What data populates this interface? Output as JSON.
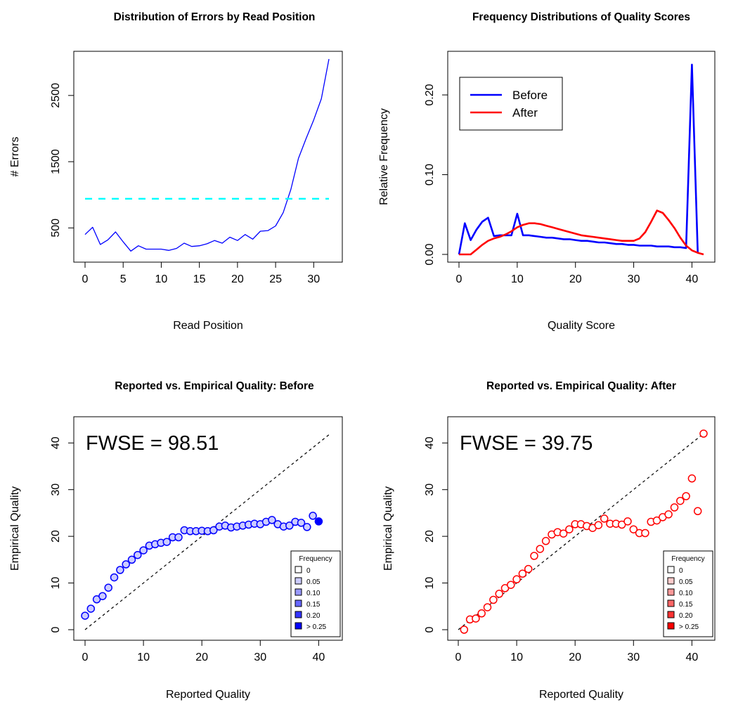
{
  "chart_data": [
    {
      "id": "errors",
      "type": "line",
      "title": "Distribution of Errors by Read Position",
      "xlabel": "Read Position",
      "ylabel": "# Errors",
      "xlim": [
        0,
        32
      ],
      "ylim": [
        100,
        3050
      ],
      "xticks": [
        0,
        5,
        10,
        15,
        20,
        25,
        30
      ],
      "yticks": [
        500,
        1500,
        2500
      ],
      "series": [
        {
          "color": "#0000ff",
          "style": "solid",
          "x": [
            0,
            1,
            2,
            3,
            4,
            5,
            6,
            7,
            8,
            9,
            10,
            11,
            12,
            13,
            14,
            15,
            16,
            17,
            18,
            19,
            20,
            21,
            22,
            23,
            24,
            25,
            26,
            27,
            28,
            29,
            30,
            31,
            32
          ],
          "y": [
            400,
            510,
            250,
            320,
            440,
            290,
            150,
            230,
            180,
            180,
            180,
            160,
            190,
            270,
            220,
            230,
            260,
            310,
            270,
            360,
            310,
            400,
            330,
            450,
            460,
            530,
            730,
            1080,
            1550,
            1850,
            2130,
            2450,
            3050
          ]
        },
        {
          "color": "#00ffff",
          "style": "dashed",
          "x": [
            0,
            32
          ],
          "y": [
            940,
            940
          ]
        }
      ]
    },
    {
      "id": "freq",
      "type": "line",
      "title": "Frequency Distributions of Quality Scores",
      "xlabel": "Quality Score",
      "ylabel": "Relative Frequency",
      "xlim": [
        0,
        42
      ],
      "ylim": [
        0,
        0.245
      ],
      "xticks": [
        0,
        10,
        20,
        30,
        40
      ],
      "yticks": [
        "0.00",
        "0.10",
        "0.20"
      ],
      "legend": {
        "position": "top-left",
        "entries": [
          "Before",
          "After"
        ]
      },
      "series": [
        {
          "name": "Before",
          "color": "#0000ff",
          "x": [
            0,
            1,
            2,
            3,
            4,
            5,
            6,
            7,
            8,
            9,
            10,
            11,
            12,
            13,
            14,
            15,
            16,
            17,
            18,
            19,
            20,
            21,
            22,
            23,
            24,
            25,
            26,
            27,
            28,
            29,
            30,
            31,
            32,
            33,
            34,
            35,
            36,
            37,
            38,
            39,
            40,
            41
          ],
          "y": [
            0.0,
            0.039,
            0.018,
            0.031,
            0.041,
            0.046,
            0.023,
            0.024,
            0.024,
            0.024,
            0.051,
            0.024,
            0.024,
            0.023,
            0.022,
            0.021,
            0.021,
            0.02,
            0.019,
            0.019,
            0.018,
            0.017,
            0.017,
            0.016,
            0.015,
            0.015,
            0.014,
            0.013,
            0.013,
            0.012,
            0.012,
            0.011,
            0.011,
            0.011,
            0.01,
            0.01,
            0.01,
            0.009,
            0.009,
            0.008,
            0.238,
            0.002
          ]
        },
        {
          "name": "After",
          "color": "#ff0000",
          "x": [
            0,
            1,
            2,
            3,
            4,
            5,
            6,
            7,
            8,
            9,
            10,
            11,
            12,
            13,
            14,
            15,
            16,
            17,
            18,
            19,
            20,
            21,
            22,
            23,
            24,
            25,
            26,
            27,
            28,
            29,
            30,
            31,
            32,
            33,
            34,
            35,
            36,
            37,
            38,
            39,
            40,
            41,
            42
          ],
          "y": [
            0.0,
            0.0,
            0.0,
            0.006,
            0.012,
            0.017,
            0.02,
            0.022,
            0.025,
            0.029,
            0.034,
            0.037,
            0.039,
            0.039,
            0.038,
            0.036,
            0.034,
            0.032,
            0.03,
            0.028,
            0.026,
            0.024,
            0.023,
            0.022,
            0.021,
            0.02,
            0.019,
            0.018,
            0.017,
            0.017,
            0.017,
            0.02,
            0.028,
            0.041,
            0.055,
            0.052,
            0.043,
            0.033,
            0.021,
            0.011,
            0.005,
            0.002,
            0.0
          ]
        }
      ]
    },
    {
      "id": "before",
      "type": "scatter",
      "title": "Reported vs. Empirical Quality: Before",
      "xlabel": "Reported Quality",
      "ylabel": "Empirical Quality",
      "xlim": [
        0,
        42
      ],
      "ylim": [
        0,
        42
      ],
      "xticks": [
        0,
        10,
        20,
        30,
        40
      ],
      "yticks": [
        0,
        10,
        20,
        30,
        40
      ],
      "annotation": "FWSE = 98.51",
      "legend": {
        "title": "Frequency",
        "position": "bottom-right",
        "entries": [
          "0",
          "0.05",
          "0.10",
          "0.15",
          "0.20",
          "> 0.25"
        ],
        "fills": [
          "#ffffff",
          "#ccccff",
          "#9999ff",
          "#6666ff",
          "#3333ff",
          "#0000ff"
        ]
      },
      "series": [
        {
          "color": "#0000ff",
          "x": [
            0,
            1,
            2,
            3,
            4,
            5,
            6,
            7,
            8,
            9,
            10,
            11,
            12,
            13,
            14,
            15,
            16,
            17,
            18,
            19,
            20,
            21,
            22,
            23,
            24,
            25,
            26,
            27,
            28,
            29,
            30,
            31,
            32,
            33,
            34,
            35,
            36,
            37,
            38,
            39,
            40
          ],
          "y": [
            3.0,
            4.5,
            6.5,
            7.2,
            9.0,
            11.2,
            12.8,
            14.0,
            15.0,
            16.0,
            17.0,
            18.0,
            18.3,
            18.6,
            18.8,
            19.8,
            19.8,
            21.3,
            21.1,
            21.1,
            21.2,
            21.1,
            21.3,
            22.1,
            22.3,
            21.9,
            22.1,
            22.3,
            22.5,
            22.7,
            22.6,
            23.1,
            23.5,
            22.6,
            22.1,
            22.3,
            23.1,
            22.9,
            22.0,
            24.4,
            23.2
          ],
          "fill": [
            "#ccccff",
            "#ccccff",
            "#ccccff",
            "#ccccff",
            "#ccccff",
            "#ccccff",
            "#ccccff",
            "#ccccff",
            "#ccccff",
            "#ccccff",
            "#ccccff",
            "#ccccff",
            "#ccccff",
            "#ccccff",
            "#ccccff",
            "#ccccff",
            "#ccccff",
            "#ccccff",
            "#ccccff",
            "#ccccff",
            "#ccccff",
            "#ccccff",
            "#ccccff",
            "#ccccff",
            "#ccccff",
            "#ccccff",
            "#ccccff",
            "#ccccff",
            "#ccccff",
            "#ccccff",
            "#ccccff",
            "#ccccff",
            "#ccccff",
            "#ccccff",
            "#ccccff",
            "#ccccff",
            "#ccccff",
            "#ccccff",
            "#ccccff",
            "#ccccff",
            "#0000ff"
          ]
        }
      ]
    },
    {
      "id": "after",
      "type": "scatter",
      "title": "Reported vs. Empirical Quality: After",
      "xlabel": "Reported Quality",
      "ylabel": "Empirical Quality",
      "xlim": [
        0,
        42
      ],
      "ylim": [
        0,
        42
      ],
      "xticks": [
        0,
        10,
        20,
        30,
        40
      ],
      "yticks": [
        0,
        10,
        20,
        30,
        40
      ],
      "annotation": "FWSE = 39.75",
      "legend": {
        "title": "Frequency",
        "position": "bottom-right",
        "entries": [
          "0",
          "0.05",
          "0.10",
          "0.15",
          "0.20",
          "> 0.25"
        ],
        "fills": [
          "#ffffff",
          "#ffcccc",
          "#ff9999",
          "#ff6666",
          "#ff3333",
          "#ff0000"
        ]
      },
      "series": [
        {
          "color": "#ff0000",
          "x": [
            1,
            2,
            3,
            4,
            5,
            6,
            7,
            8,
            9,
            10,
            11,
            12,
            13,
            14,
            15,
            16,
            17,
            18,
            19,
            20,
            21,
            22,
            23,
            24,
            25,
            26,
            27,
            28,
            29,
            30,
            31,
            32,
            33,
            34,
            35,
            36,
            37,
            38,
            39,
            40,
            41,
            42
          ],
          "y": [
            0.0,
            2.2,
            2.4,
            3.5,
            4.8,
            6.4,
            7.7,
            8.9,
            9.6,
            10.8,
            12.0,
            13.0,
            15.8,
            17.3,
            19.0,
            20.4,
            20.9,
            20.6,
            21.5,
            22.6,
            22.6,
            22.2,
            21.8,
            22.4,
            23.8,
            22.7,
            22.7,
            22.5,
            23.2,
            21.5,
            20.7,
            20.7,
            23.1,
            23.4,
            24.1,
            24.7,
            26.2,
            27.6,
            28.6,
            32.4,
            25.4,
            42.0
          ],
          "fill": [
            "#ffffff",
            "#ffffff",
            "#ffffff",
            "#ffffff",
            "#ffffff",
            "#ffffff",
            "#ffffff",
            "#ffffff",
            "#ffffff",
            "#ffffff",
            "#ffffff",
            "#ffffff",
            "#ffffff",
            "#ffffff",
            "#ffffff",
            "#ffffff",
            "#ffffff",
            "#ffffff",
            "#ffffff",
            "#ffffff",
            "#ffffff",
            "#ffffff",
            "#ffffff",
            "#ffffff",
            "#ffffff",
            "#ffffff",
            "#ffffff",
            "#ffffff",
            "#ffffff",
            "#ffffff",
            "#ffffff",
            "#ffffff",
            "#ffffff",
            "#ffffff",
            "#ffffff",
            "#ffffff",
            "#ffffff",
            "#ffffff",
            "#ffffff",
            "#ffffff",
            "#ffffff",
            "#ffffff"
          ]
        }
      ]
    }
  ]
}
